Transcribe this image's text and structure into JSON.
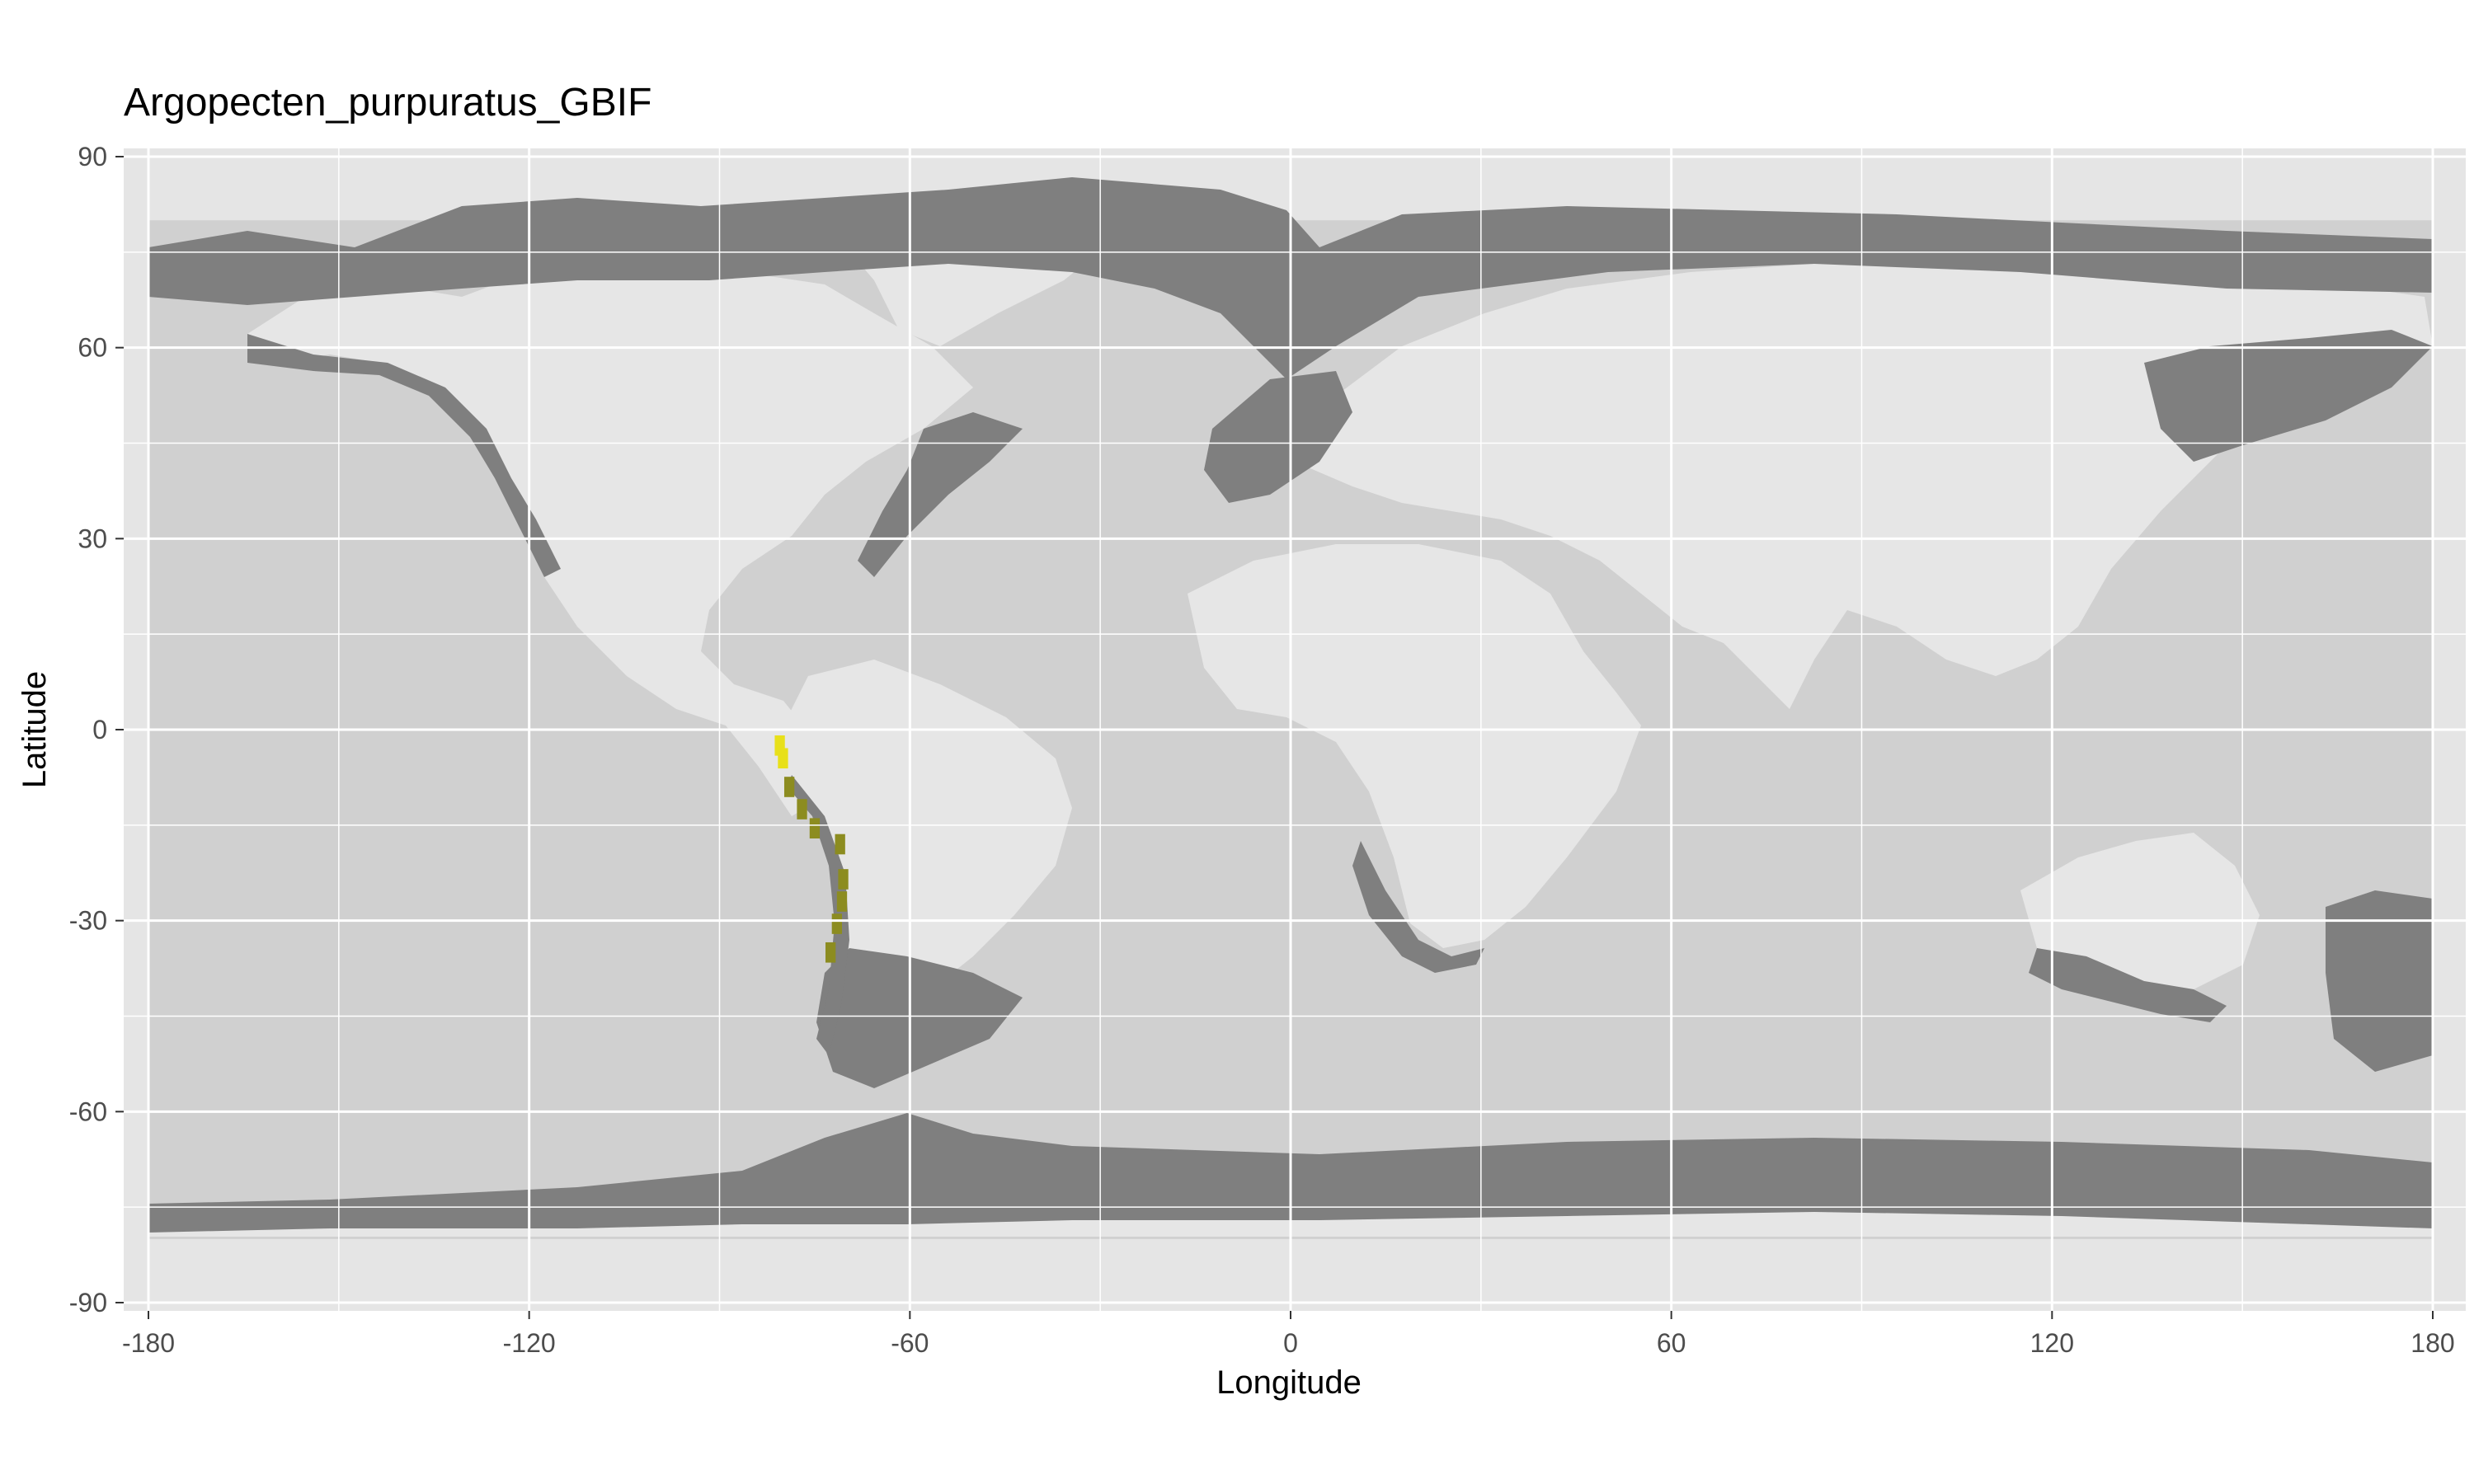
{
  "chart_data": {
    "type": "raster-map",
    "title": "Argopecten_purpuratus_GBIF",
    "xlabel": "Longitude",
    "ylabel": "Latitude",
    "xlim": [
      -180,
      180
    ],
    "ylim": [
      -90,
      90
    ],
    "x_ticks": [
      -180,
      -120,
      -60,
      0,
      60,
      120,
      180
    ],
    "y_ticks": [
      -90,
      -60,
      -30,
      0,
      30,
      60,
      90
    ],
    "x_tick_labels": [
      "-180",
      "-120",
      "-60",
      "0",
      "60",
      "120",
      "180"
    ],
    "y_tick_labels": [
      "-90",
      "-60",
      "-30",
      "0",
      "30",
      "60",
      "90"
    ],
    "grid": true,
    "colors": {
      "panel": "#e5e5e5",
      "ocean": "#d0d0d0",
      "land": "#e6e6e6",
      "coastal_shelf": "#7f7f7f",
      "occurrence_high": "#e8e01a",
      "occurrence_low": "#8c8c20",
      "gridline": "#ffffff"
    },
    "layers": [
      {
        "name": "ocean",
        "role": "background raster"
      },
      {
        "name": "land",
        "role": "land mask"
      },
      {
        "name": "shelf",
        "role": "shallow shelf cells"
      },
      {
        "name": "occurrence",
        "role": "species suitability cells"
      }
    ],
    "occurrences": [
      {
        "lon": -80.5,
        "lat": -2.5,
        "level": "high"
      },
      {
        "lon": -80,
        "lat": -4.5,
        "level": "high"
      },
      {
        "lon": -79,
        "lat": -9,
        "level": "low"
      },
      {
        "lon": -77,
        "lat": -12.5,
        "level": "low"
      },
      {
        "lon": -75,
        "lat": -15.5,
        "level": "low"
      },
      {
        "lon": -71,
        "lat": -18,
        "level": "low"
      },
      {
        "lon": -70.5,
        "lat": -23.5,
        "level": "low"
      },
      {
        "lon": -70.7,
        "lat": -27,
        "level": "low"
      },
      {
        "lon": -71.5,
        "lat": -30.5,
        "level": "low"
      },
      {
        "lon": -72.5,
        "lat": -35,
        "level": "low"
      }
    ]
  }
}
